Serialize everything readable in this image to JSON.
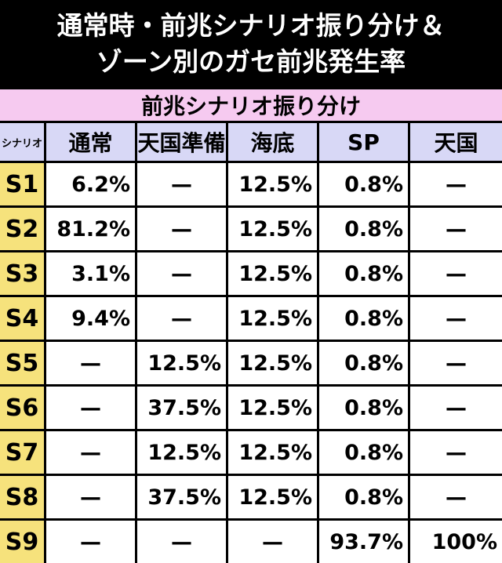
{
  "header": {
    "title": [
      "通常時・前兆シナリオ振り分け＆",
      "ゾーン別のガセ前兆発生率"
    ]
  },
  "table": {
    "caption": "前兆シナリオ振り分け",
    "columns": [
      "シナリオ",
      "通常",
      "天国準備",
      "海底",
      "SP",
      "天国"
    ],
    "rows": [
      [
        "S1",
        "6.2%",
        "—",
        "12.5%",
        "0.8%",
        "—"
      ],
      [
        "S2",
        "81.2%",
        "—",
        "12.5%",
        "0.8%",
        "—"
      ],
      [
        "S3",
        "3.1%",
        "—",
        "12.5%",
        "0.8%",
        "—"
      ],
      [
        "S4",
        "9.4%",
        "—",
        "12.5%",
        "0.8%",
        "—"
      ],
      [
        "S5",
        "—",
        "12.5%",
        "12.5%",
        "0.8%",
        "—"
      ],
      [
        "S6",
        "—",
        "37.5%",
        "12.5%",
        "0.8%",
        "—"
      ],
      [
        "S7",
        "—",
        "12.5%",
        "12.5%",
        "0.8%",
        "—"
      ],
      [
        "S8",
        "—",
        "37.5%",
        "12.5%",
        "0.8%",
        "—"
      ],
      [
        "S9",
        "—",
        "—",
        "—",
        "93.7%",
        "100%"
      ]
    ]
  }
}
